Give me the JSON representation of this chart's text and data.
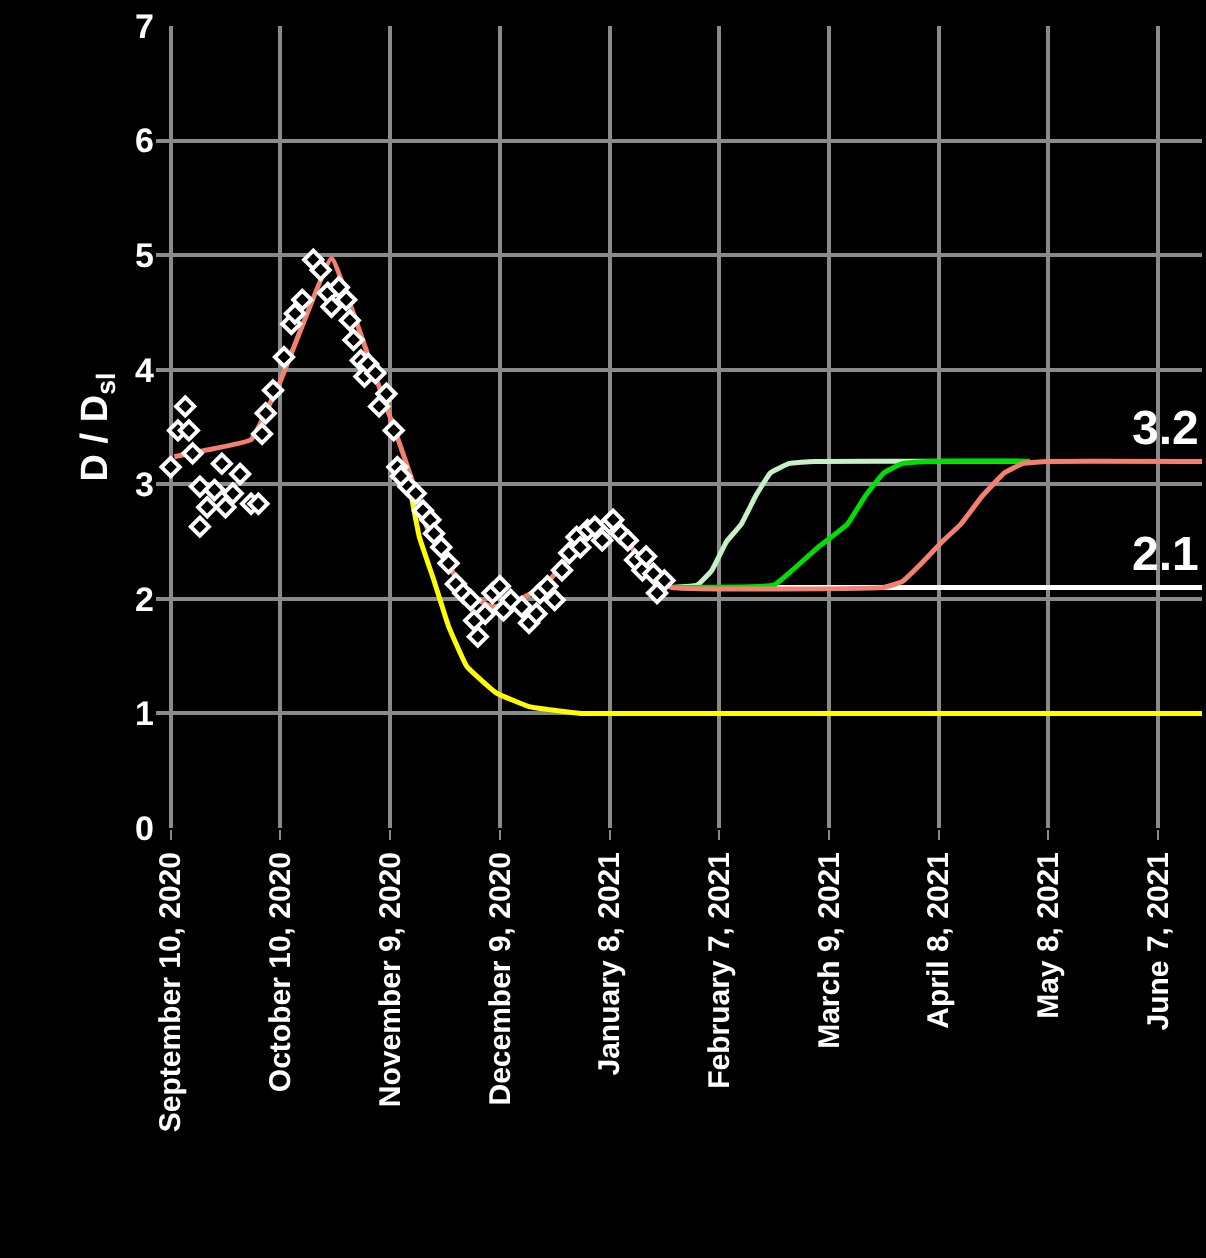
{
  "chart_data": {
    "type": "line",
    "ylabel": "D / D$_{sl}$",
    "xlim": [
      "2020-09-06",
      "2021-06-19"
    ],
    "ylim": [
      0,
      7
    ],
    "yticks": [
      0,
      1,
      2,
      3,
      4,
      5,
      6,
      7
    ],
    "xticks": [
      {
        "value": "2020-09-10",
        "label": "September 10, 2020"
      },
      {
        "value": "2020-10-10",
        "label": "October 10, 2020"
      },
      {
        "value": "2020-11-09",
        "label": "November 9, 2020"
      },
      {
        "value": "2020-12-09",
        "label": "December 9, 2020"
      },
      {
        "value": "2021-01-08",
        "label": "January 8, 2021"
      },
      {
        "value": "2021-02-07",
        "label": "February 7, 2021"
      },
      {
        "value": "2021-03-09",
        "label": "March 9, 2021"
      },
      {
        "value": "2021-04-08",
        "label": "April 8, 2021"
      },
      {
        "value": "2021-05-08",
        "label": "May 8, 2021"
      },
      {
        "value": "2021-06-07",
        "label": "June 7, 2021"
      }
    ],
    "grid": true,
    "line_style": "solid",
    "series": [
      {
        "color": "#ffff00",
        "marker": "none",
        "x": [
          "2020-11-14",
          "2020-11-17",
          "2020-11-21",
          "2020-11-25",
          "2020-11-30",
          "2020-12-08",
          "2020-12-17",
          "2020-12-31",
          "2021-01-18",
          "2021-06-19"
        ],
        "values": [
          3.04,
          2.54,
          2.16,
          1.76,
          1.41,
          1.18,
          1.06,
          1.0,
          1.0,
          1.0
        ]
      },
      {
        "color": "#ffffff",
        "marker": "none",
        "x": [
          "2021-01-25",
          "2021-06-19"
        ],
        "values": [
          2.1,
          2.1
        ]
      },
      {
        "color": "#c8f0c8",
        "marker": "none",
        "x": [
          "2021-01-25",
          "2021-02-01",
          "2021-02-05",
          "2021-02-09",
          "2021-02-13",
          "2021-02-17",
          "2021-02-21",
          "2021-02-26",
          "2021-03-05",
          "2021-05-03"
        ],
        "values": [
          2.1,
          2.12,
          2.25,
          2.5,
          2.65,
          2.9,
          3.1,
          3.18,
          3.2,
          3.2
        ]
      },
      {
        "color": "#00e000",
        "marker": "none",
        "x": [
          "2021-01-25",
          "2021-02-22",
          "2021-02-27",
          "2021-03-06",
          "2021-03-14",
          "2021-03-19",
          "2021-03-24",
          "2021-03-29",
          "2021-04-05",
          "2021-05-03"
        ],
        "values": [
          2.1,
          2.12,
          2.25,
          2.45,
          2.65,
          2.9,
          3.1,
          3.18,
          3.2,
          3.2
        ]
      },
      {
        "color": "#f4806f",
        "marker": "none",
        "x": [
          "2020-09-11",
          "2020-09-20",
          "2020-10-02",
          "2020-10-10",
          "2020-10-24",
          "2020-10-30",
          "2020-11-04",
          "2020-11-10",
          "2020-11-15",
          "2020-11-19",
          "2020-11-24",
          "2020-11-30",
          "2020-12-07",
          "2020-12-14",
          "2020-12-21",
          "2020-12-29",
          "2021-01-05",
          "2021-01-08",
          "2021-01-14",
          "2021-01-19",
          "2021-01-25",
          "2021-03-24",
          "2021-03-29",
          "2021-04-03",
          "2021-04-09",
          "2021-04-14",
          "2021-04-20",
          "2021-04-26",
          "2021-05-01",
          "2021-05-08",
          "2021-06-19"
        ],
        "values": [
          3.24,
          3.3,
          3.39,
          3.9,
          4.97,
          4.49,
          4.03,
          3.5,
          3.04,
          2.63,
          2.34,
          2.05,
          1.93,
          1.99,
          2.11,
          2.4,
          2.63,
          2.66,
          2.45,
          2.22,
          2.1,
          2.1,
          2.15,
          2.3,
          2.5,
          2.65,
          2.9,
          3.1,
          3.18,
          3.2,
          3.2
        ]
      },
      {
        "type": "scatter",
        "color": "#ffffff",
        "marker": "diamond",
        "x": [
          "2020-09-10",
          "2020-09-12",
          "2020-09-14",
          "2020-09-15",
          "2020-09-16",
          "2020-09-18",
          "2020-09-18",
          "2020-09-20",
          "2020-09-22",
          "2020-09-24",
          "2020-09-25",
          "2020-09-27",
          "2020-09-29",
          "2020-10-02",
          "2020-10-04",
          "2020-10-05",
          "2020-10-06",
          "2020-10-08",
          "2020-10-11",
          "2020-10-13",
          "2020-10-14",
          "2020-10-16",
          "2020-10-19",
          "2020-10-21",
          "2020-10-23",
          "2020-10-24",
          "2020-10-26",
          "2020-10-28",
          "2020-10-29",
          "2020-10-30",
          "2020-11-01",
          "2020-11-02",
          "2020-11-03",
          "2020-11-05",
          "2020-11-06",
          "2020-11-08",
          "2020-11-10",
          "2020-11-11",
          "2020-11-12",
          "2020-11-14",
          "2020-11-16",
          "2020-11-18",
          "2020-11-20",
          "2020-11-21",
          "2020-11-23",
          "2020-11-25",
          "2020-11-27",
          "2020-11-29",
          "2020-12-01",
          "2020-12-02",
          "2020-12-03",
          "2020-12-05",
          "2020-12-07",
          "2020-12-09",
          "2020-12-10",
          "2020-12-12",
          "2020-12-15",
          "2020-12-17",
          "2020-12-19",
          "2020-12-20",
          "2020-12-22",
          "2020-12-24",
          "2020-12-26",
          "2020-12-28",
          "2020-12-30",
          "2020-12-31",
          "2021-01-02",
          "2021-01-04",
          "2021-01-06",
          "2021-01-08",
          "2021-01-09",
          "2021-01-11",
          "2021-01-13",
          "2021-01-15",
          "2021-01-17",
          "2021-01-18",
          "2021-01-20",
          "2021-01-21",
          "2021-01-23"
        ],
        "values": [
          3.15,
          3.47,
          3.68,
          3.47,
          3.27,
          2.98,
          2.63,
          2.8,
          2.95,
          3.18,
          2.8,
          2.92,
          3.09,
          2.83,
          2.83,
          3.44,
          3.62,
          3.82,
          4.11,
          4.4,
          4.49,
          4.61,
          4.96,
          4.87,
          4.67,
          4.55,
          4.72,
          4.61,
          4.43,
          4.26,
          4.08,
          3.94,
          4.05,
          3.97,
          3.68,
          3.79,
          3.47,
          3.15,
          3.07,
          2.98,
          2.92,
          2.77,
          2.69,
          2.57,
          2.45,
          2.31,
          2.13,
          2.05,
          1.99,
          1.81,
          1.67,
          1.87,
          2.05,
          2.11,
          1.9,
          1.99,
          1.93,
          1.79,
          1.87,
          2.05,
          2.11,
          1.99,
          2.25,
          2.4,
          2.54,
          2.45,
          2.6,
          2.63,
          2.51,
          2.66,
          2.69,
          2.57,
          2.51,
          2.34,
          2.25,
          2.37,
          2.22,
          2.05,
          2.16
        ]
      }
    ],
    "annotations": [
      {
        "text": "3.2",
        "x": "2021-06-19",
        "y": 3.2
      },
      {
        "text": "2.1",
        "x": "2021-06-19",
        "y": 2.1
      }
    ]
  }
}
